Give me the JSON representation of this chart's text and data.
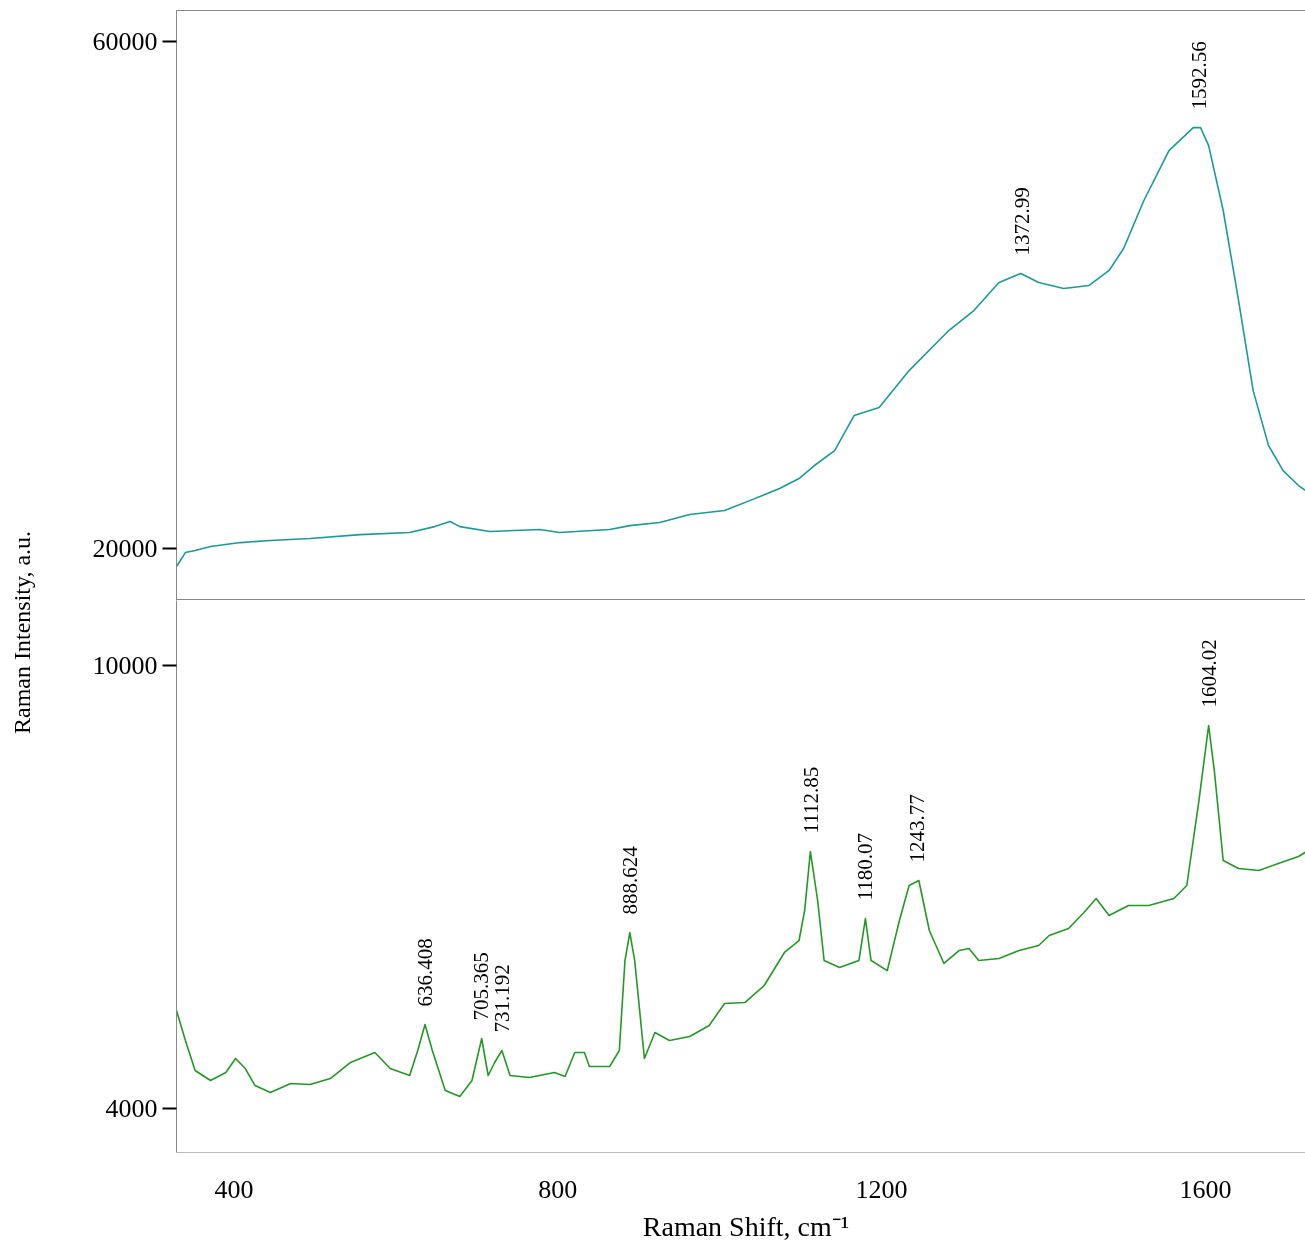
{
  "chart_data": [
    {
      "type": "line",
      "ylabel": "Raman Intensity, a.u.",
      "xlim": [
        329,
        1736
      ],
      "ylim": [
        15900,
        62450
      ],
      "yticks": [
        20000,
        60000
      ],
      "tick_labels": "y",
      "grid": false,
      "marker": "none",
      "line_style": "solid",
      "x": [
        329,
        340,
        352,
        371,
        408,
        445,
        494,
        556,
        617,
        648,
        667,
        679,
        716,
        778,
        802,
        864,
        889,
        926,
        963,
        1006,
        1037,
        1074,
        1098,
        1117,
        1142,
        1166,
        1197,
        1234,
        1283,
        1314,
        1345,
        1372,
        1394,
        1425,
        1456,
        1481,
        1499,
        1524,
        1555,
        1585,
        1594,
        1604,
        1622,
        1641,
        1659,
        1678,
        1696,
        1715,
        1733
      ],
      "series": [
        {
          "color": "#1a9a9a",
          "values": [
            18580,
            19680,
            19840,
            20160,
            20470,
            20630,
            20790,
            21100,
            21260,
            21730,
            22130,
            21730,
            21340,
            21500,
            21260,
            21500,
            21810,
            22050,
            22680,
            23000,
            23780,
            24730,
            25520,
            26550,
            27730,
            30490,
            31120,
            34040,
            37200,
            38780,
            40990,
            41700,
            40990,
            40520,
            40750,
            41940,
            43670,
            47460,
            51400,
            53210,
            53210,
            51790,
            46670,
            39560,
            32460,
            28120,
            26150,
            24970,
            24180
          ]
        }
      ],
      "annotations": [
        {
          "text": "1372.99",
          "x": 1372.99,
          "y": 41700
        },
        {
          "text": "1592.56",
          "x": 1592.56,
          "y": 53210
        }
      ]
    },
    {
      "type": "line",
      "xlabel": "Raman Shift, cm⁻¹",
      "xlim": [
        329,
        1736
      ],
      "xticks": [
        400,
        800,
        1200,
        1600
      ],
      "ylim": [
        3404,
        10880
      ],
      "yticks": [
        4000,
        10000
      ],
      "grid": false,
      "marker": "none",
      "line_style": "solid",
      "x": [
        329,
        340,
        352,
        371,
        390,
        402,
        414,
        426,
        445,
        470,
        494,
        519,
        544,
        574,
        593,
        617,
        627,
        636,
        645,
        661,
        679,
        694,
        706,
        714,
        722,
        731,
        741,
        765,
        796,
        809,
        821,
        833,
        839,
        864,
        876,
        883,
        889,
        895,
        907,
        920,
        938,
        963,
        987,
        1006,
        1031,
        1055,
        1080,
        1098,
        1105,
        1112,
        1121,
        1129,
        1148,
        1172,
        1180,
        1187,
        1207,
        1222,
        1234,
        1246,
        1259,
        1277,
        1296,
        1308,
        1320,
        1345,
        1370,
        1394,
        1407,
        1431,
        1450,
        1465,
        1481,
        1505,
        1530,
        1561,
        1577,
        1592,
        1604,
        1611,
        1622,
        1641,
        1666,
        1690,
        1715,
        1733
      ],
      "series": [
        {
          "color": "#229922",
          "values": [
            5327,
            4921,
            4514,
            4379,
            4487,
            4677,
            4541,
            4311,
            4216,
            4338,
            4325,
            4406,
            4623,
            4758,
            4541,
            4447,
            4785,
            5137,
            4785,
            4243,
            4162,
            4379,
            4948,
            4447,
            4623,
            4785,
            4447,
            4420,
            4487,
            4433,
            4758,
            4758,
            4568,
            4568,
            4785,
            6004,
            6383,
            6004,
            4677,
            5029,
            4921,
            4975,
            5124,
            5422,
            5435,
            5666,
            6113,
            6275,
            6682,
            7481,
            6817,
            6004,
            5909,
            6004,
            6573,
            6004,
            5868,
            6546,
            7020,
            7088,
            6411,
            5964,
            6140,
            6167,
            6004,
            6031,
            6140,
            6207,
            6343,
            6438,
            6654,
            6844,
            6614,
            6749,
            6749,
            6844,
            7020,
            8171,
            9187,
            8578,
            7359,
            7250,
            7223,
            7318,
            7413,
            7535
          ]
        }
      ],
      "annotations": [
        {
          "text": "636.408",
          "x": 636.408,
          "y": 5137
        },
        {
          "text": "705.365",
          "x": 705.365,
          "y": 4948
        },
        {
          "text": "731.192",
          "x": 731.192,
          "y": 4785
        },
        {
          "text": "888.624",
          "x": 888.624,
          "y": 6383
        },
        {
          "text": "1112.85",
          "x": 1112.85,
          "y": 7481
        },
        {
          "text": "1180.07",
          "x": 1180.07,
          "y": 6573
        },
        {
          "text": "1243.77",
          "x": 1243.77,
          "y": 7088
        },
        {
          "text": "1604.02",
          "x": 1604.02,
          "y": 9187
        }
      ]
    }
  ]
}
